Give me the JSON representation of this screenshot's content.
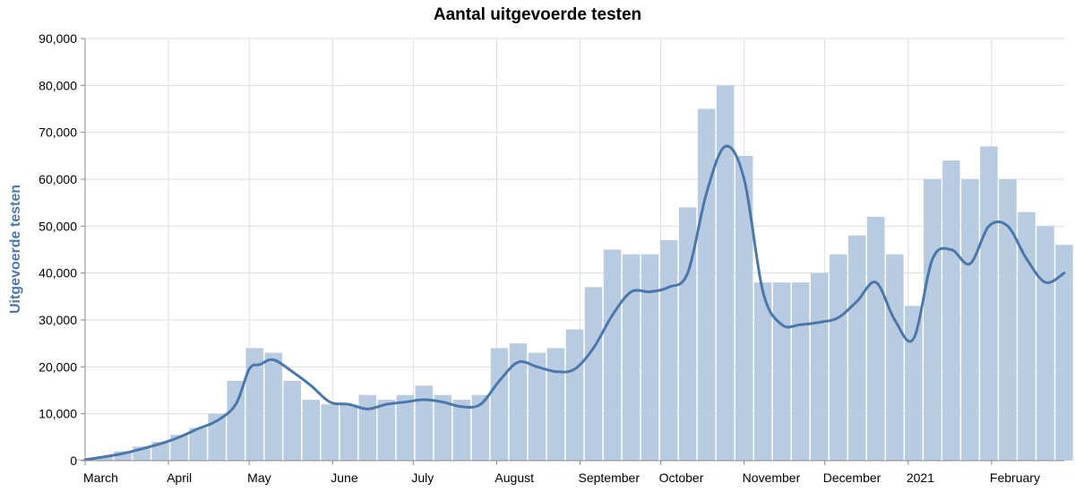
{
  "chart_data": {
    "type": "bar",
    "title": "Aantal uitgevoerde testen",
    "ylabel": "Uitgevoerde testen",
    "xlabel": "",
    "ylim": [
      0,
      90000
    ],
    "y_ticks": [
      0,
      10000,
      20000,
      30000,
      40000,
      50000,
      60000,
      70000,
      80000,
      90000
    ],
    "y_tick_labels": [
      "0",
      "10,000",
      "20,000",
      "30,000",
      "40,000",
      "50,000",
      "60,000",
      "70,000",
      "80,000",
      "90,000"
    ],
    "x_range": [
      "2020-03-01",
      "2021-02-28"
    ],
    "x_ticks": [
      {
        "date": "2020-03-01",
        "label": "March"
      },
      {
        "date": "2020-04-01",
        "label": "April"
      },
      {
        "date": "2020-05-01",
        "label": "May"
      },
      {
        "date": "2020-06-01",
        "label": "June"
      },
      {
        "date": "2020-07-01",
        "label": "July"
      },
      {
        "date": "2020-08-01",
        "label": "August"
      },
      {
        "date": "2020-09-01",
        "label": "September"
      },
      {
        "date": "2020-10-01",
        "label": "October"
      },
      {
        "date": "2020-11-01",
        "label": "November"
      },
      {
        "date": "2020-12-01",
        "label": "December"
      },
      {
        "date": "2021-01-01",
        "label": "2021"
      },
      {
        "date": "2021-02-01",
        "label": "February"
      }
    ],
    "grid": true,
    "legend": "none",
    "bar_color": "#b9cbe0",
    "line_color": "#4a78aa",
    "series": [
      {
        "type": "bar",
        "points": [
          [
            "2020-03-01",
            300
          ],
          [
            "2020-03-08",
            800
          ],
          [
            "2020-03-15",
            2000
          ],
          [
            "2020-03-22",
            3000
          ],
          [
            "2020-03-29",
            4000
          ],
          [
            "2020-04-05",
            5500
          ],
          [
            "2020-04-12",
            7000
          ],
          [
            "2020-04-19",
            10000
          ],
          [
            "2020-04-26",
            17000
          ],
          [
            "2020-05-03",
            24000
          ],
          [
            "2020-05-10",
            23000
          ],
          [
            "2020-05-17",
            17000
          ],
          [
            "2020-05-24",
            13000
          ],
          [
            "2020-05-31",
            12000
          ],
          [
            "2020-06-07",
            12000
          ],
          [
            "2020-06-14",
            14000
          ],
          [
            "2020-06-21",
            13000
          ],
          [
            "2020-06-28",
            14000
          ],
          [
            "2020-07-05",
            16000
          ],
          [
            "2020-07-12",
            14000
          ],
          [
            "2020-07-19",
            13000
          ],
          [
            "2020-07-26",
            14000
          ],
          [
            "2020-08-02",
            24000
          ],
          [
            "2020-08-09",
            25000
          ],
          [
            "2020-08-16",
            23000
          ],
          [
            "2020-08-23",
            24000
          ],
          [
            "2020-08-30",
            28000
          ],
          [
            "2020-09-06",
            37000
          ],
          [
            "2020-09-13",
            45000
          ],
          [
            "2020-09-20",
            44000
          ],
          [
            "2020-09-27",
            44000
          ],
          [
            "2020-10-04",
            47000
          ],
          [
            "2020-10-11",
            54000
          ],
          [
            "2020-10-18",
            75000
          ],
          [
            "2020-10-25",
            80000
          ],
          [
            "2020-11-01",
            65000
          ],
          [
            "2020-11-08",
            38000
          ],
          [
            "2020-11-15",
            38000
          ],
          [
            "2020-11-22",
            38000
          ],
          [
            "2020-11-29",
            40000
          ],
          [
            "2020-12-06",
            44000
          ],
          [
            "2020-12-13",
            48000
          ],
          [
            "2020-12-20",
            52000
          ],
          [
            "2020-12-27",
            44000
          ],
          [
            "2021-01-03",
            33000
          ],
          [
            "2021-01-10",
            60000
          ],
          [
            "2021-01-17",
            64000
          ],
          [
            "2021-01-24",
            60000
          ],
          [
            "2021-01-31",
            67000
          ],
          [
            "2021-02-07",
            60000
          ],
          [
            "2021-02-14",
            53000
          ],
          [
            "2021-02-21",
            50000
          ],
          [
            "2021-02-28",
            46000
          ]
        ]
      },
      {
        "type": "line",
        "name": "",
        "points": [
          [
            "2020-03-01",
            200
          ],
          [
            "2020-03-08",
            800
          ],
          [
            "2020-03-15",
            1500
          ],
          [
            "2020-03-22",
            2500
          ],
          [
            "2020-03-29",
            3600
          ],
          [
            "2020-04-05",
            5000
          ],
          [
            "2020-04-12",
            6800
          ],
          [
            "2020-04-19",
            8500
          ],
          [
            "2020-04-26",
            12000
          ],
          [
            "2020-05-01",
            19500
          ],
          [
            "2020-05-05",
            20500
          ],
          [
            "2020-05-10",
            21500
          ],
          [
            "2020-05-17",
            19000
          ],
          [
            "2020-05-24",
            16000
          ],
          [
            "2020-05-31",
            12500
          ],
          [
            "2020-06-07",
            12000
          ],
          [
            "2020-06-14",
            11000
          ],
          [
            "2020-06-21",
            12000
          ],
          [
            "2020-06-28",
            12500
          ],
          [
            "2020-07-05",
            13000
          ],
          [
            "2020-07-12",
            12500
          ],
          [
            "2020-07-19",
            11500
          ],
          [
            "2020-07-26",
            12000
          ],
          [
            "2020-08-02",
            17000
          ],
          [
            "2020-08-09",
            21000
          ],
          [
            "2020-08-16",
            20000
          ],
          [
            "2020-08-23",
            19000
          ],
          [
            "2020-08-30",
            19500
          ],
          [
            "2020-09-06",
            24000
          ],
          [
            "2020-09-13",
            31000
          ],
          [
            "2020-09-20",
            36000
          ],
          [
            "2020-09-27",
            36000
          ],
          [
            "2020-10-04",
            37000
          ],
          [
            "2020-10-11",
            40000
          ],
          [
            "2020-10-18",
            57000
          ],
          [
            "2020-10-25",
            67000
          ],
          [
            "2020-11-01",
            60000
          ],
          [
            "2020-11-08",
            36000
          ],
          [
            "2020-11-15",
            29000
          ],
          [
            "2020-11-22",
            29000
          ],
          [
            "2020-11-29",
            29500
          ],
          [
            "2020-12-06",
            30500
          ],
          [
            "2020-12-13",
            34000
          ],
          [
            "2020-12-20",
            38000
          ],
          [
            "2020-12-27",
            30000
          ],
          [
            "2021-01-03",
            26000
          ],
          [
            "2021-01-10",
            43000
          ],
          [
            "2021-01-17",
            45000
          ],
          [
            "2021-01-24",
            42000
          ],
          [
            "2021-01-31",
            50000
          ],
          [
            "2021-02-07",
            50000
          ],
          [
            "2021-02-14",
            43000
          ],
          [
            "2021-02-21",
            38000
          ],
          [
            "2021-02-28",
            40000
          ]
        ]
      }
    ]
  }
}
